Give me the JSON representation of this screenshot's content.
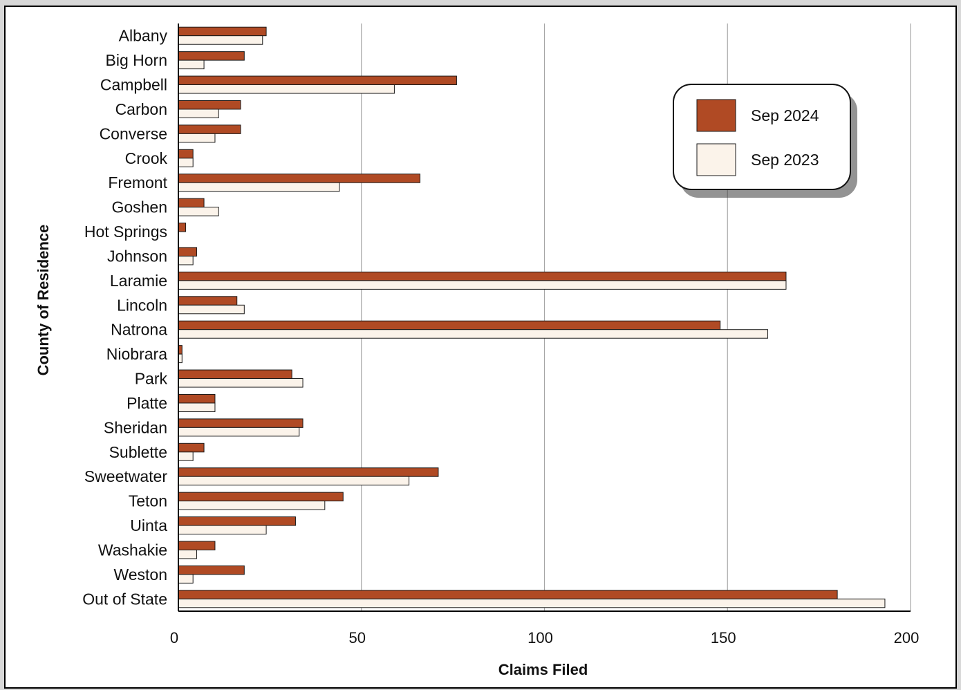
{
  "chart_data": {
    "type": "bar",
    "orientation": "horizontal",
    "categories": [
      "Albany",
      "Big Horn",
      "Campbell",
      "Carbon",
      "Converse",
      "Crook",
      "Fremont",
      "Goshen",
      "Hot Springs",
      "Johnson",
      "Laramie",
      "Lincoln",
      "Natrona",
      "Niobrara",
      "Park",
      "Platte",
      "Sheridan",
      "Sublette",
      "Sweetwater",
      "Teton",
      "Uinta",
      "Washakie",
      "Weston",
      "Out of State"
    ],
    "series": [
      {
        "name": "Sep 2024",
        "color": "#b04a24",
        "values": [
          24,
          18,
          76,
          17,
          17,
          4,
          66,
          7,
          2,
          5,
          166,
          16,
          148,
          1,
          31,
          10,
          34,
          7,
          71,
          45,
          32,
          10,
          18,
          180
        ]
      },
      {
        "name": "Sep 2023",
        "color": "#fbf3ea",
        "values": [
          23,
          7,
          59,
          11,
          10,
          4,
          44,
          11,
          0,
          4,
          166,
          18,
          161,
          1,
          34,
          10,
          33,
          4,
          63,
          40,
          24,
          5,
          4,
          193
        ]
      }
    ],
    "xlabel": "Claims Filed",
    "ylabel": "County of Residence",
    "xlim": [
      0,
      200
    ],
    "xticks": [
      0,
      50,
      100,
      150,
      200
    ],
    "grid": "vertical",
    "legend_position": "top-right"
  }
}
